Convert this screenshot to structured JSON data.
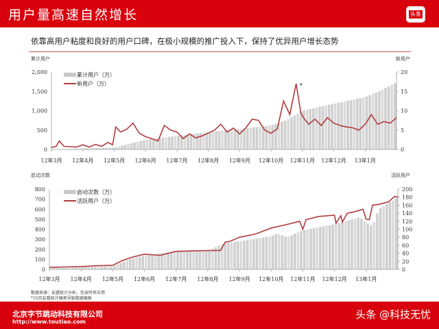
{
  "header": {
    "title": "用户量高速自然增长",
    "logo_text": "头条"
  },
  "subtitle": "依靠高用户粘度和良好的用户口碑，在极小规模的推广投入下，保持了优异用户增长态势",
  "colors": {
    "brand": "#d8000c",
    "line": "#b03a3a",
    "bar": "#cfcfcf"
  },
  "chart_data": [
    {
      "type": "bar+line",
      "left_axis_title": "累计用户",
      "right_axis_title": "新用户",
      "ylim_left": [
        0,
        2000
      ],
      "yticks_left": [
        "0",
        "500",
        "1,000",
        "1,500",
        "2,000"
      ],
      "ylim_right": [
        0,
        20
      ],
      "yticks_right": [
        "0",
        "5",
        "10",
        "15",
        "20"
      ],
      "x_ticks": [
        "12年3月",
        "12年4月",
        "12年5月",
        "12年6月",
        "12年7月",
        "12年8月",
        "12年9月",
        "12年10月",
        "12年11月",
        "12年12月",
        "13年1月"
      ],
      "legend": [
        "累计用户（万）",
        "新用户（万）"
      ],
      "legend_position": "top-left",
      "annotation": "*",
      "bar_series": {
        "name": "累计用户（万）",
        "x_months": [
          0,
          2,
          2.5,
          3,
          4,
          5,
          6,
          7,
          7.5,
          8,
          9,
          10,
          10.5,
          11
        ],
        "values": [
          0,
          50,
          150,
          250,
          350,
          450,
          530,
          620,
          760,
          1000,
          1180,
          1350,
          1520,
          1730
        ]
      },
      "line_series": {
        "name": "新用户（万）",
        "x_months": [
          0,
          0.15,
          0.25,
          0.4,
          0.6,
          0.8,
          1,
          1.2,
          1.4,
          1.6,
          1.8,
          1.95,
          2.05,
          2.2,
          2.4,
          2.6,
          2.8,
          3,
          3.2,
          3.4,
          3.6,
          3.8,
          4,
          4.2,
          4.4,
          4.6,
          4.8,
          5,
          5.2,
          5.4,
          5.6,
          5.8,
          6,
          6.2,
          6.4,
          6.6,
          6.8,
          7,
          7.2,
          7.4,
          7.6,
          7.8,
          7.95,
          8.05,
          8.2,
          8.4,
          8.6,
          8.8,
          9,
          9.2,
          9.4,
          9.6,
          9.8,
          10,
          10.2,
          10.4,
          10.6,
          10.8,
          11
        ],
        "values": [
          0.5,
          0.8,
          2.2,
          0.8,
          0.7,
          0.6,
          1.2,
          0.6,
          1.3,
          0.8,
          1.8,
          1.2,
          5.8,
          4.5,
          5.2,
          6.8,
          4.2,
          3.3,
          2.8,
          2.2,
          6.2,
          5.0,
          4.5,
          2.8,
          4.0,
          3.0,
          3.5,
          4.2,
          5.0,
          6.5,
          4.5,
          5.5,
          4.0,
          5.6,
          7.8,
          7.5,
          5.0,
          4.2,
          5.3,
          12.5,
          9.0,
          17,
          9.5,
          8.0,
          6.5,
          7.8,
          6.2,
          8.2,
          6.8,
          6.2,
          5.8,
          5.6,
          5.0,
          6.5,
          9.0,
          6.5,
          7.2,
          6.8,
          8.2
        ]
      }
    },
    {
      "type": "bar+line",
      "left_axis_title": "启动次数",
      "right_axis_title": "活跃用户",
      "ylim_left": [
        0,
        800
      ],
      "yticks_left": [
        "0",
        "100",
        "200",
        "300",
        "400",
        "500",
        "600",
        "700",
        "800"
      ],
      "ylim_right": [
        0,
        200
      ],
      "yticks_right": [
        "0",
        "20",
        "40",
        "60",
        "80",
        "100",
        "120",
        "140",
        "160",
        "180",
        "200"
      ],
      "x_ticks": [
        "12年3月",
        "12年4月",
        "12年5月",
        "12年6月",
        "12年7月",
        "12年8月",
        "12年9月",
        "12年10月",
        "12年11月",
        "12年12月",
        "13年1月"
      ],
      "legend": [
        "启动次数（万）",
        "活跃用户（万）"
      ],
      "legend_position": "top-left",
      "bar_series": {
        "name": "启动次数（万）",
        "x_months": [
          0,
          2,
          2.5,
          3,
          4,
          5,
          5.5,
          6,
          7,
          7.2,
          7.5,
          8,
          9,
          9.8,
          10,
          10.2,
          10.4,
          11
        ],
        "values": [
          10,
          30,
          100,
          140,
          180,
          185,
          260,
          280,
          330,
          360,
          320,
          390,
          450,
          520,
          470,
          430,
          600,
          720
        ]
      },
      "line_series": {
        "name": "活跃用户（万）",
        "x_months": [
          0,
          0.5,
          1,
          1.5,
          2,
          2.3,
          2.6,
          3,
          3.5,
          4,
          4.5,
          5,
          5.4,
          5.55,
          5.7,
          6,
          6.5,
          7,
          7.5,
          7.9,
          8,
          8.1,
          8.5,
          9,
          9.05,
          9.2,
          9.25,
          9.4,
          9.6,
          9.9,
          10,
          10.1,
          10.2,
          10.4,
          10.7,
          10.9,
          11
        ],
        "values": [
          5,
          6,
          7,
          9,
          10,
          22,
          30,
          38,
          35,
          45,
          46,
          47,
          47,
          68,
          70,
          80,
          88,
          103,
          112,
          120,
          100,
          124,
          132,
          135,
          115,
          134,
          118,
          140,
          143,
          150,
          125,
          124,
          160,
          162,
          168,
          182,
          180
        ]
      }
    }
  ],
  "notes": [
    "数据来源：友盟统计分析，包含所有应用",
    "*10月友盟统计偏差导致数据偏高"
  ],
  "footer": {
    "company": "北京字节跳动科技有限公司",
    "url": "http://www.toutiao.com",
    "watermark": "头条 @科技无忧"
  }
}
